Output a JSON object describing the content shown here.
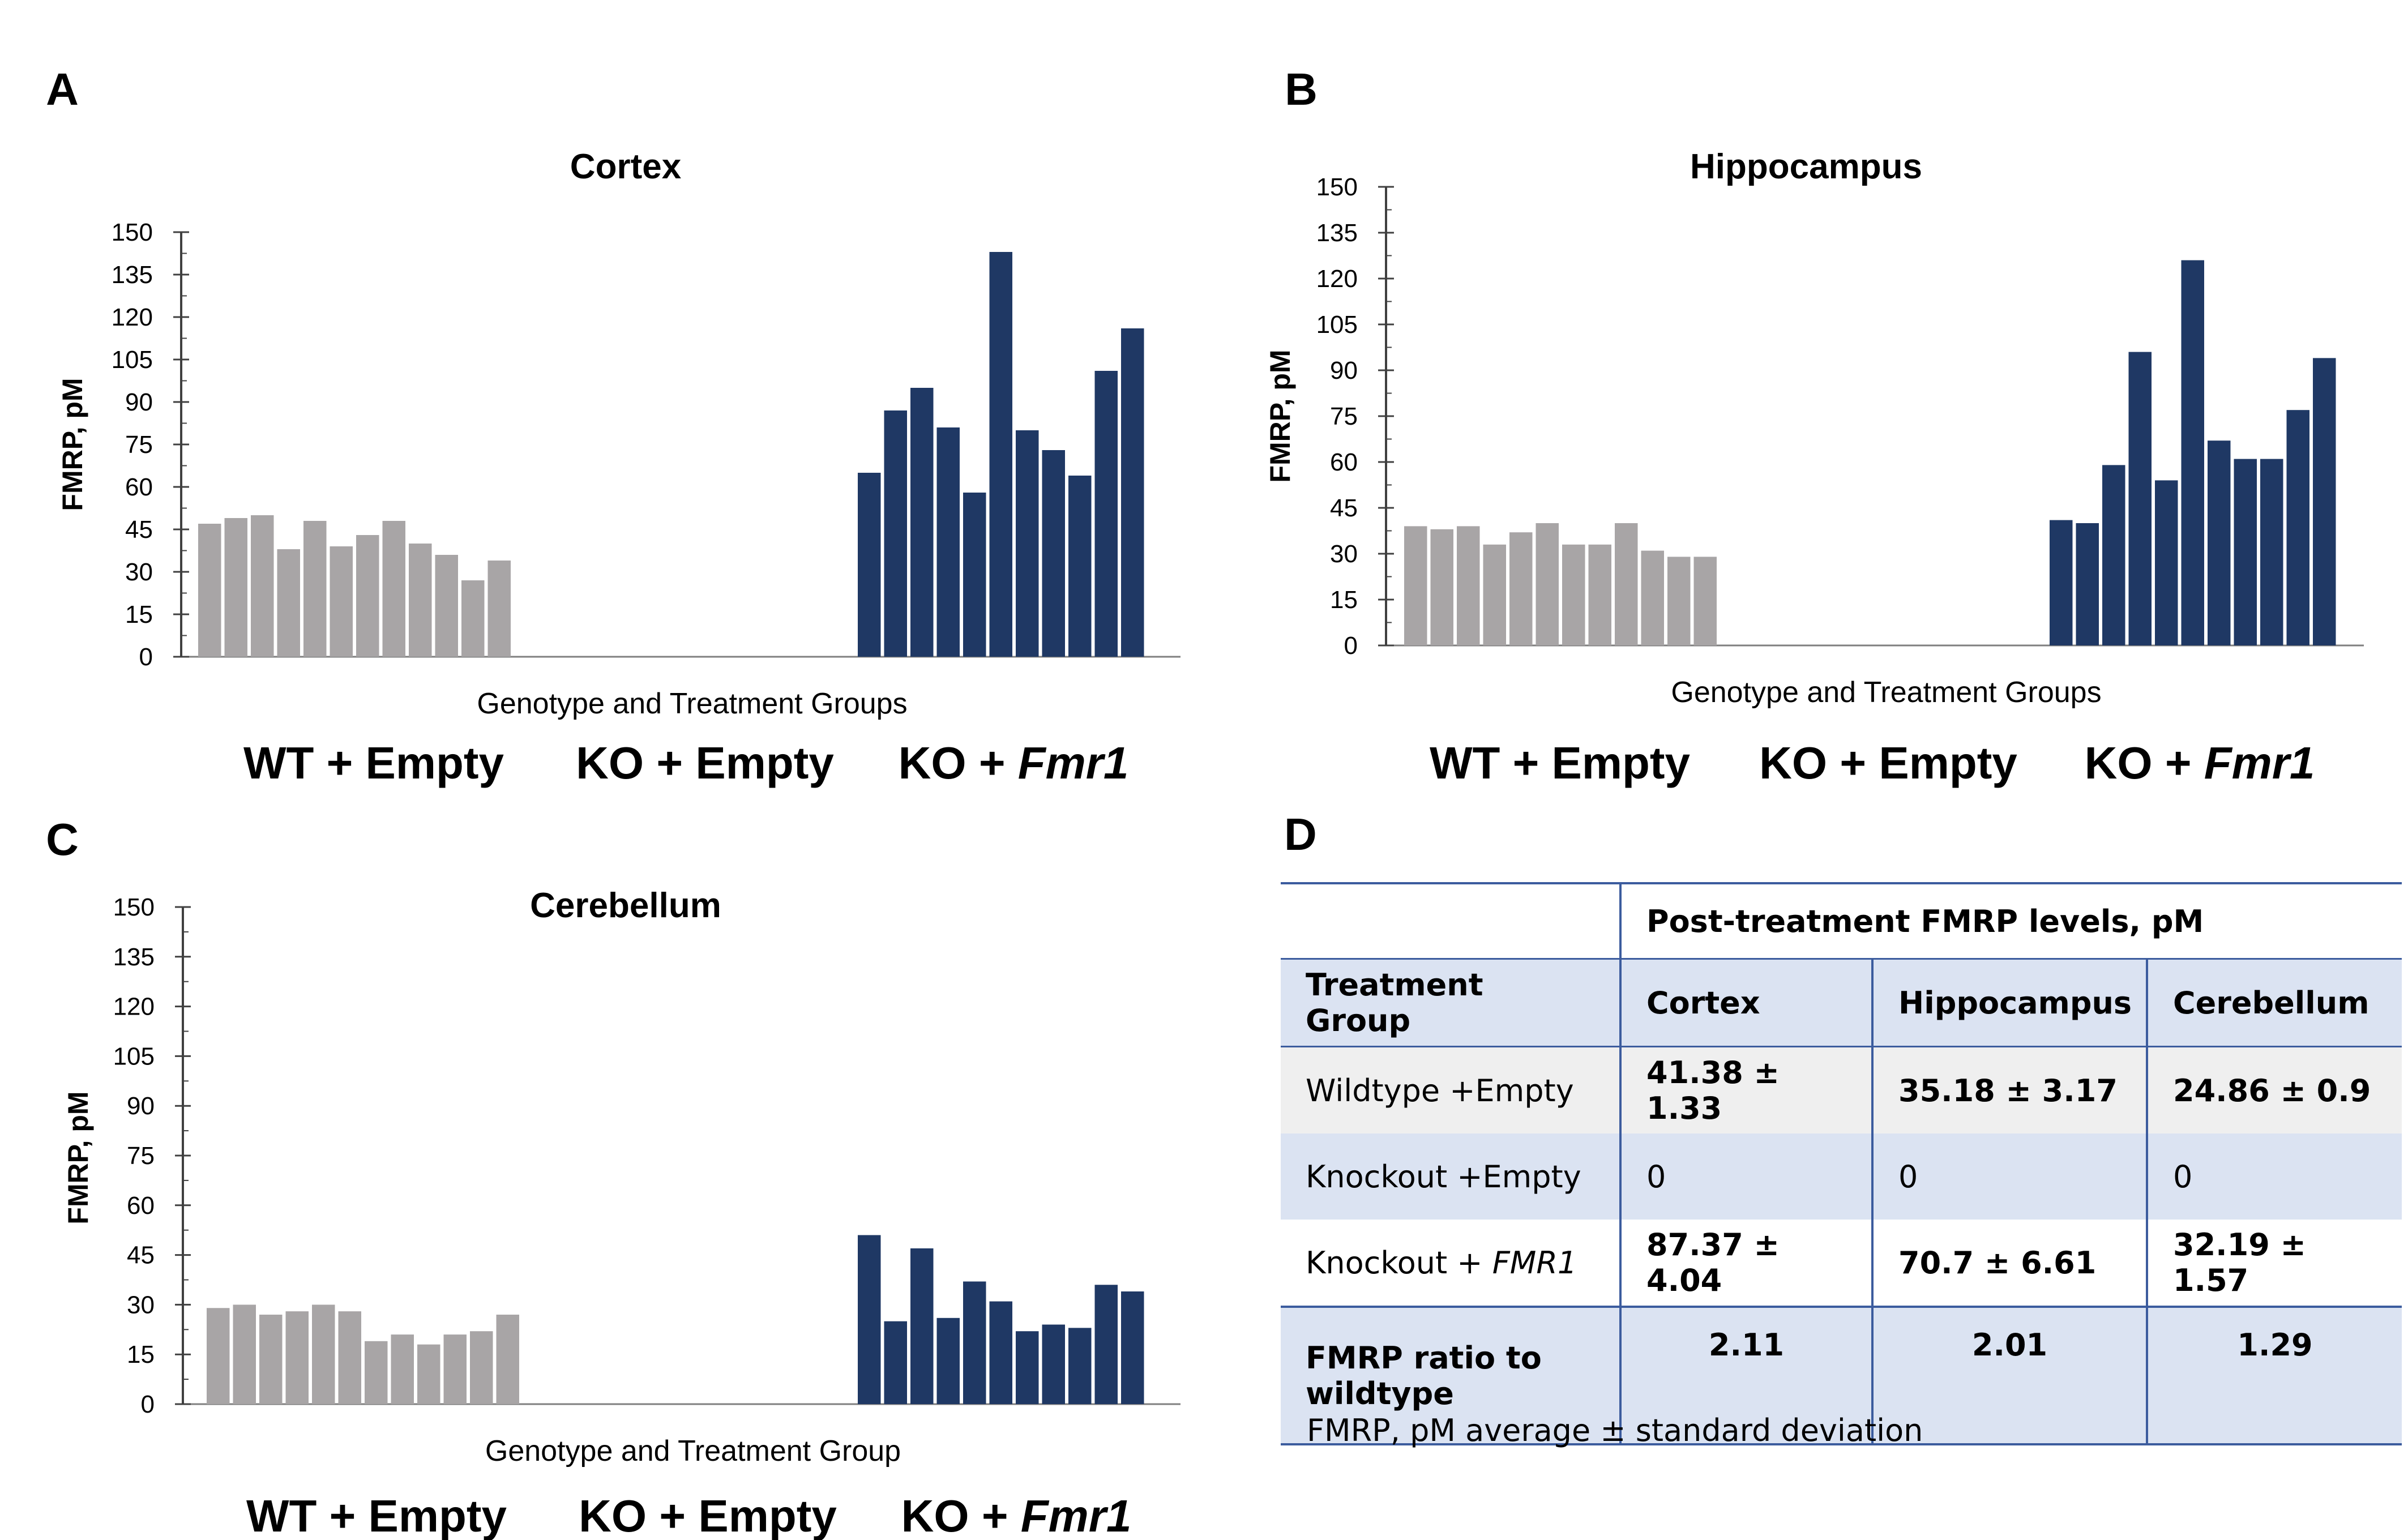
{
  "colors": {
    "wt": "#a8a5a6",
    "ko_fmr1": "#1f3864",
    "axis": "#7f7f7f",
    "table_line": "#3c5c9e",
    "table_alt": "#dbe3f2"
  },
  "group_labels": {
    "g1": "WT + Empty",
    "g2": "KO + Empty",
    "g3_prefix": "KO + ",
    "g3_gene": "Fmr1"
  },
  "chart_data": [
    {
      "panel": "A",
      "type": "bar",
      "title": "Cortex",
      "ylabel": "FMRP, pM",
      "xlabel": "Genotype and Treatment Groups",
      "ylim": [
        0,
        150
      ],
      "yticks": [
        0,
        15,
        30,
        45,
        60,
        75,
        90,
        105,
        120,
        135,
        150
      ],
      "series": [
        {
          "name": "WT + Empty",
          "values": [
            47,
            49,
            50,
            38,
            48,
            39,
            43,
            48,
            40,
            36,
            27,
            34
          ]
        },
        {
          "name": "KO + Empty",
          "values": []
        },
        {
          "name": "KO + Fmr1",
          "values": [
            65,
            87,
            95,
            81,
            58,
            143,
            80,
            73,
            64,
            101,
            116
          ]
        }
      ]
    },
    {
      "panel": "B",
      "type": "bar",
      "title": "Hippocampus",
      "ylabel": "FMRP, pM",
      "xlabel": "Genotype and Treatment Groups",
      "ylim": [
        0,
        150
      ],
      "yticks": [
        0,
        15,
        30,
        45,
        60,
        75,
        90,
        105,
        120,
        135,
        150
      ],
      "series": [
        {
          "name": "WT + Empty",
          "values": [
            39,
            38,
            39,
            33,
            37,
            40,
            33,
            33,
            40,
            31,
            29,
            29
          ]
        },
        {
          "name": "KO + Empty",
          "values": []
        },
        {
          "name": "KO + Fmr1",
          "values": [
            41,
            40,
            59,
            96,
            54,
            126,
            67,
            61,
            61,
            77,
            94
          ]
        }
      ]
    },
    {
      "panel": "C",
      "type": "bar",
      "title": "Cerebellum",
      "ylabel": "FMRP, pM",
      "xlabel": "Genotype and Treatment Group",
      "ylim": [
        0,
        150
      ],
      "yticks": [
        0,
        15,
        30,
        45,
        60,
        75,
        90,
        105,
        120,
        135,
        150
      ],
      "series": [
        {
          "name": "WT + Empty",
          "values": [
            29,
            30,
            27,
            28,
            30,
            28,
            19,
            21,
            18,
            21,
            22,
            27
          ]
        },
        {
          "name": "KO + Empty",
          "values": []
        },
        {
          "name": "KO + Fmr1",
          "values": [
            51,
            25,
            47,
            26,
            37,
            31,
            22,
            24,
            23,
            36,
            34
          ]
        }
      ]
    }
  ],
  "table": {
    "panel": "D",
    "header_span": "Post-treatment FMRP levels, pM",
    "columns": [
      "Treatment Group",
      "Cortex",
      "Hippocampus",
      "Cerebellum"
    ],
    "rows": [
      {
        "group": "Wildtype +Empty",
        "group_gene": "",
        "cortex": "41.38 ± 1.33",
        "hippocampus": "35.18 ± 3.17",
        "cerebellum": "24.86 ± 0.9"
      },
      {
        "group": "Knockout +Empty",
        "group_gene": "",
        "cortex": "0",
        "hippocampus": "0",
        "cerebellum": "0"
      },
      {
        "group": "Knockout + ",
        "group_gene": "FMR1",
        "cortex": "87.37 ± 4.04",
        "hippocampus": "70.7 ± 6.61",
        "cerebellum": "32.19 ± 1.57"
      }
    ],
    "ratio_row": {
      "label_line1": "FMRP ratio to",
      "label_line2": "wildtype",
      "cortex": "2.11",
      "hippocampus": "2.01",
      "cerebellum": "1.29"
    },
    "note": "FMRP, pM average ± standard deviation"
  }
}
